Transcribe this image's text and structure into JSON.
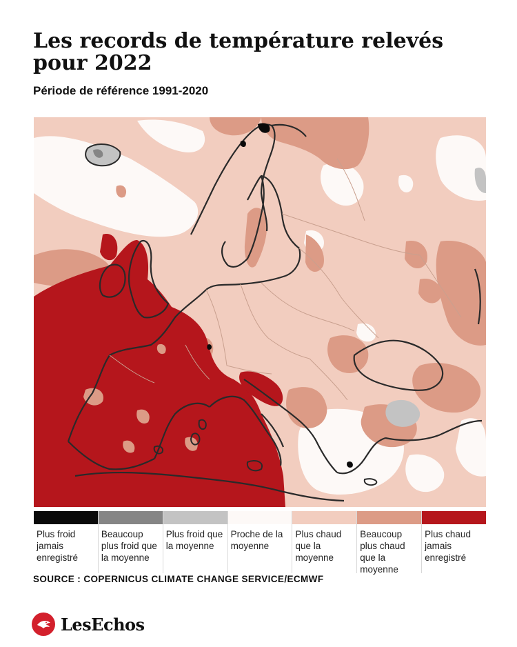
{
  "header": {
    "title": "Les records de température relevés pour 2022",
    "subtitle": "Période de référence 1991-2020"
  },
  "map": {
    "colors": {
      "base": "#f2cdbf",
      "near_average": "#fdf9f7",
      "much_warmer": "#dc9b86",
      "record_warm": "#b5161c",
      "colder": "#c3c3c3",
      "much_colder": "#858585",
      "record_cold": "#0a0a0a",
      "coast": "#2a2a2a",
      "border": "#c9a08f"
    }
  },
  "legend": {
    "items": [
      {
        "label": "Plus froid jamais enregistré",
        "color": "#0a0a0a"
      },
      {
        "label": "Beaucoup plus froid que la moyenne",
        "color": "#858585"
      },
      {
        "label": "Plus froid que la moyenne",
        "color": "#c3c3c3"
      },
      {
        "label": "Proche de la moyenne",
        "color": "#fdf9f7"
      },
      {
        "label": "Plus chaud que la moyenne",
        "color": "#f2cdbf"
      },
      {
        "label": "Beaucoup plus chaud que la moyenne",
        "color": "#dc9b86"
      },
      {
        "label": "Plus chaud jamais enregistré",
        "color": "#b5161c"
      }
    ]
  },
  "footer": {
    "source": "SOURCE : COPERNICUS CLIMATE CHANGE SERVICE/ECMWF",
    "logo_text": "LesEchos",
    "logo_icon": "les-echos-eagle-icon"
  }
}
